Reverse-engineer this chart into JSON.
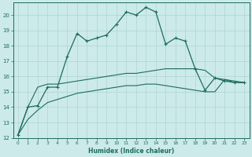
{
  "xlabel": "Humidex (Indice chaleur)",
  "bg_color": "#cceaea",
  "line_color": "#1e6b5e",
  "grid_color": "#afd4d4",
  "xlim": [
    -0.5,
    23.5
  ],
  "ylim": [
    12,
    20.8
  ],
  "yticks": [
    12,
    13,
    14,
    15,
    16,
    17,
    18,
    19,
    20
  ],
  "xticks": [
    0,
    1,
    2,
    3,
    4,
    5,
    6,
    7,
    8,
    9,
    10,
    11,
    12,
    13,
    14,
    15,
    16,
    17,
    18,
    19,
    20,
    21,
    22,
    23
  ],
  "series1_x": [
    0,
    1,
    2,
    3,
    4,
    5,
    6,
    7,
    8,
    9,
    10,
    11,
    12,
    13,
    14,
    15,
    16,
    17,
    18,
    19,
    20,
    21,
    22,
    23
  ],
  "series1_y": [
    12.2,
    14.0,
    14.1,
    15.3,
    15.3,
    17.3,
    18.8,
    18.3,
    18.5,
    18.7,
    19.4,
    20.2,
    20.0,
    20.5,
    20.2,
    18.1,
    18.5,
    18.3,
    16.5,
    15.1,
    15.9,
    15.7,
    15.6,
    15.6
  ],
  "series2_x": [
    0,
    1,
    2,
    3,
    4,
    5,
    6,
    7,
    8,
    9,
    10,
    11,
    12,
    13,
    14,
    15,
    16,
    17,
    18,
    19,
    20,
    21,
    22,
    23
  ],
  "series2_y": [
    12.2,
    14.0,
    15.3,
    15.5,
    15.5,
    15.6,
    15.7,
    15.8,
    15.9,
    16.0,
    16.1,
    16.2,
    16.2,
    16.3,
    16.4,
    16.5,
    16.5,
    16.5,
    16.5,
    16.4,
    15.9,
    15.8,
    15.7,
    15.6
  ],
  "series3_x": [
    0,
    1,
    2,
    3,
    4,
    5,
    6,
    7,
    8,
    9,
    10,
    11,
    12,
    13,
    14,
    15,
    16,
    17,
    18,
    19,
    20,
    21,
    22,
    23
  ],
  "series3_y": [
    12.2,
    13.2,
    13.8,
    14.3,
    14.5,
    14.7,
    14.9,
    15.0,
    15.1,
    15.2,
    15.3,
    15.4,
    15.4,
    15.5,
    15.5,
    15.4,
    15.3,
    15.2,
    15.1,
    15.0,
    15.0,
    15.8,
    15.6,
    15.6
  ]
}
